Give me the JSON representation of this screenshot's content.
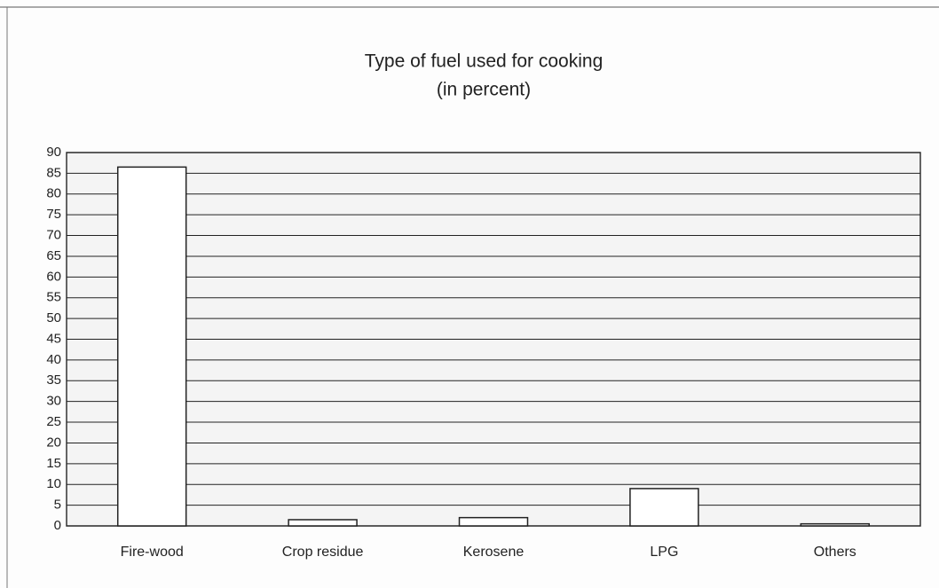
{
  "chart_data": {
    "type": "bar",
    "title": "Type of fuel used for cooking",
    "subtitle": "(in percent)",
    "categories": [
      "Fire-wood",
      "Crop residue",
      "Kerosene",
      "LPG",
      "Others"
    ],
    "values": [
      86.5,
      1.5,
      2,
      9,
      0.5
    ],
    "color": "#ffffff",
    "ylim": [
      0,
      90
    ],
    "yticks": [
      0,
      5,
      10,
      15,
      20,
      25,
      30,
      35,
      40,
      45,
      50,
      55,
      60,
      65,
      70,
      75,
      80,
      85,
      90
    ],
    "grid": true
  }
}
